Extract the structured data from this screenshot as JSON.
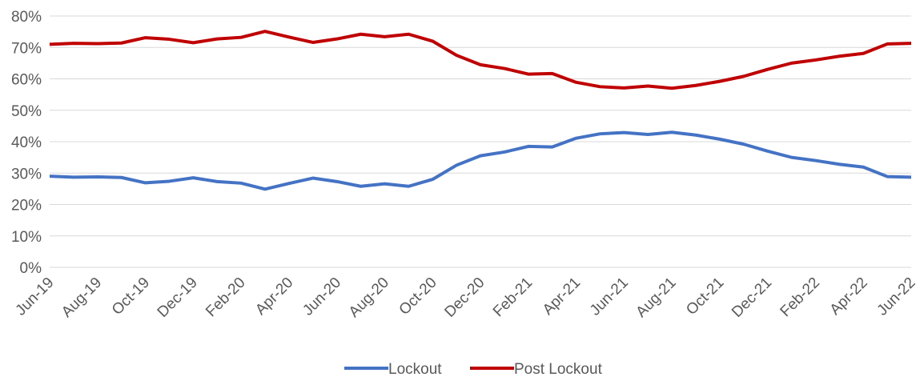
{
  "chart_data": {
    "type": "line",
    "categories": [
      "Jun-19",
      null,
      "Aug-19",
      null,
      "Oct-19",
      null,
      "Dec-19",
      null,
      "Feb-20",
      null,
      "Apr-20",
      null,
      "Jun-20",
      null,
      "Aug-20",
      null,
      "Oct-20",
      null,
      "Dec-20",
      null,
      "Feb-21",
      null,
      "Apr-21",
      null,
      "Jun-21",
      null,
      "Aug-21",
      null,
      "Oct-21",
      null,
      "Dec-21",
      null,
      "Feb-22",
      null,
      "Apr-22",
      null,
      "Jun-22"
    ],
    "series": [
      {
        "name": "Lockout",
        "color": "#4472c4",
        "values": [
          29,
          28.7,
          28.8,
          28.6,
          26.9,
          27.4,
          28.5,
          27.3,
          26.8,
          24.9,
          26.7,
          28.4,
          27.3,
          25.8,
          26.6,
          25.8,
          28,
          32.5,
          35.5,
          36.7,
          38.5,
          38.3,
          41.1,
          42.5,
          42.9,
          42.3,
          43,
          42.1,
          40.8,
          39.2,
          37,
          35,
          34,
          32.8,
          31.9,
          28.9,
          28.7
        ]
      },
      {
        "name": "Post Lockout",
        "color": "#c00000",
        "values": [
          71,
          71.3,
          71.2,
          71.4,
          73.1,
          72.6,
          71.5,
          72.7,
          73.2,
          75.1,
          73.3,
          71.6,
          72.7,
          74.2,
          73.4,
          74.2,
          72,
          67.5,
          64.5,
          63.3,
          61.5,
          61.7,
          58.9,
          57.5,
          57.1,
          57.7,
          57,
          57.9,
          59.2,
          60.8,
          63,
          65,
          66,
          67.2,
          68.1,
          71.1,
          71.3
        ]
      }
    ],
    "ylim": [
      0,
      80
    ],
    "yticks": [
      {
        "value": 0,
        "label": "0%"
      },
      {
        "value": 10,
        "label": "10%"
      },
      {
        "value": 20,
        "label": "20%"
      },
      {
        "value": 30,
        "label": "30%"
      },
      {
        "value": 40,
        "label": "40%"
      },
      {
        "value": 50,
        "label": "50%"
      },
      {
        "value": 60,
        "label": "60%"
      },
      {
        "value": 70,
        "label": "70%"
      },
      {
        "value": 80,
        "label": "80%"
      }
    ],
    "grid": true,
    "legend": "bottom"
  }
}
